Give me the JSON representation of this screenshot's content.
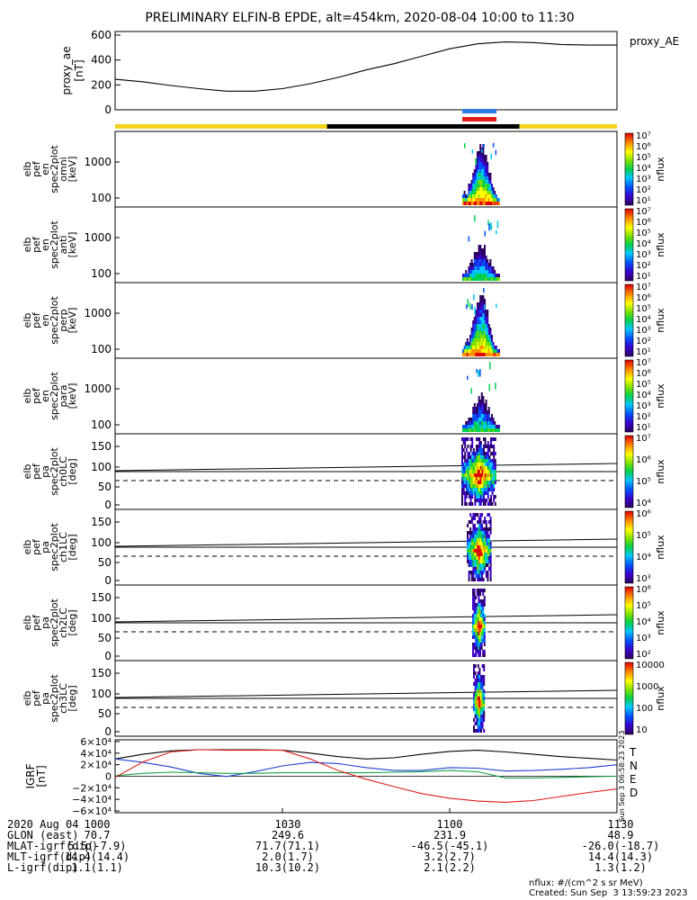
{
  "title": "PRELIMINARY ELFIN-B EPDE, alt=454km, 2020-08-04 10:00 to 11:30",
  "colors": {
    "yellow": "#f5d31b",
    "black": "#000000",
    "blue": "#2f7be6",
    "red": "#e11d1d",
    "green": "#16a34a"
  },
  "chart_data": [
    {
      "type": "line",
      "name": "proxy_ae",
      "right_label": "proxy_AE",
      "ylabel": [
        "proxy_ae",
        "[nT]"
      ],
      "ylim": [
        0,
        600
      ],
      "yticks": [
        "600",
        "400",
        "200",
        "0"
      ],
      "x_minutes": [
        0,
        5,
        10,
        15,
        20,
        25,
        30,
        35,
        40,
        45,
        50,
        55,
        60,
        65,
        70,
        75,
        80,
        85,
        90
      ],
      "values": [
        245,
        225,
        195,
        170,
        150,
        150,
        170,
        210,
        260,
        320,
        370,
        430,
        490,
        530,
        545,
        540,
        525,
        520,
        520
      ]
    },
    {
      "type": "heatmap",
      "panels": [
        {
          "ylabel": [
            "elb",
            "pef",
            "en",
            "spec2plot",
            "omni",
            "[keV]"
          ],
          "yticks": [
            "1000",
            "100"
          ],
          "zticks": [
            "10⁷",
            "10⁶",
            "10⁵",
            "10⁴",
            "10³",
            "10²",
            "10¹"
          ],
          "zlabel": "nflux"
        },
        {
          "ylabel": [
            "elb",
            "pef",
            "en",
            "spec2plot",
            "anti",
            "[keV]"
          ],
          "yticks": [
            "1000",
            "100"
          ],
          "zticks": [
            "10⁷",
            "10⁶",
            "10⁵",
            "10⁴",
            "10³",
            "10²",
            "10¹"
          ],
          "zlabel": "nflux"
        },
        {
          "ylabel": [
            "elb",
            "pef",
            "en",
            "spec2plot",
            "perp",
            "[keV]"
          ],
          "yticks": [
            "1000",
            "100"
          ],
          "zticks": [
            "10⁷",
            "10⁶",
            "10⁵",
            "10⁴",
            "10³",
            "10²",
            "10¹"
          ],
          "zlabel": "nflux"
        },
        {
          "ylabel": [
            "elb",
            "pef",
            "en",
            "spec2plot",
            "para",
            "[keV]"
          ],
          "yticks": [
            "1000",
            "100"
          ],
          "zticks": [
            "10⁷",
            "10⁶",
            "10⁵",
            "10⁴",
            "10³",
            "10²",
            "10¹"
          ],
          "zlabel": "nflux"
        },
        {
          "ylabel": [
            "elb",
            "pef",
            "pa",
            "spec2plot",
            "ch0LC",
            "[deg]"
          ],
          "yticks": [
            "150",
            "100",
            "50",
            "0"
          ],
          "zticks": [
            "10⁷",
            "10⁶",
            "10⁵",
            "10⁴"
          ],
          "zlabel": "nflux"
        },
        {
          "ylabel": [
            "elb",
            "pef",
            "pa",
            "spec2plot",
            "ch1LC",
            "[deg]"
          ],
          "yticks": [
            "150",
            "100",
            "50",
            "0"
          ],
          "zticks": [
            "10⁶",
            "10⁵",
            "10⁴",
            "10³"
          ],
          "zlabel": "nflux"
        },
        {
          "ylabel": [
            "elb",
            "pef",
            "pa",
            "spec2plot",
            "ch2LC",
            "[deg]"
          ],
          "yticks": [
            "150",
            "100",
            "50",
            "0"
          ],
          "zticks": [
            "10⁶",
            "10⁵",
            "10⁴",
            "10³",
            "10²"
          ],
          "zlabel": "nflux"
        },
        {
          "ylabel": [
            "elb",
            "pef",
            "pa",
            "spec2plot",
            "ch3LC",
            "[deg]"
          ],
          "yticks": [
            "150",
            "100",
            "50",
            "0"
          ],
          "zticks": [
            "10000",
            "1000",
            "100",
            "10"
          ],
          "zlabel": "nflux"
        }
      ]
    },
    {
      "type": "line",
      "name": "IGRF",
      "ylabel": [
        "IGRF",
        "[nT]"
      ],
      "ylim": [
        -60000,
        60000
      ],
      "yticks": [
        "6×10⁴",
        "4×10⁴",
        "2×10⁴",
        "0",
        "−2×10⁴",
        "−4×10⁴",
        "−6×10⁴"
      ],
      "x_minutes": [
        0,
        5,
        10,
        15,
        20,
        25,
        30,
        35,
        40,
        45,
        50,
        55,
        60,
        65,
        70,
        75,
        80,
        85,
        90
      ],
      "series": [
        {
          "name": "T",
          "color": "#000000",
          "values": [
            30000,
            38000,
            44000,
            46000,
            46000,
            46000,
            45000,
            40000,
            34000,
            30000,
            32000,
            38000,
            43000,
            45000,
            42000,
            38000,
            34000,
            31000,
            28000
          ]
        },
        {
          "name": "N",
          "color": "#1f3fd1",
          "values": [
            30000,
            24000,
            16000,
            5000,
            -500,
            8000,
            18000,
            24000,
            22000,
            15000,
            10000,
            10000,
            15000,
            14000,
            9000,
            10000,
            12000,
            15000,
            20000
          ]
        },
        {
          "name": "E",
          "color": "#16a34a",
          "values": [
            1000,
            5000,
            7000,
            6000,
            5000,
            5000,
            6000,
            6000,
            6000,
            6000,
            7000,
            8000,
            10000,
            8000,
            -3000,
            -3000,
            -2000,
            -1000,
            0
          ]
        },
        {
          "name": "D",
          "color": "#e11d1d",
          "values": [
            -2000,
            25000,
            42000,
            46000,
            45000,
            45000,
            45000,
            30000,
            10000,
            -5000,
            -18000,
            -30000,
            -38000,
            -43000,
            -45000,
            -42000,
            -35000,
            -28000,
            -22000
          ]
        }
      ],
      "side_text": "Sun Sep  3 06:58:23 2023"
    }
  ],
  "footer": {
    "rows": [
      {
        "label": "2020 Aug 04",
        "cols": [
          "1000",
          "1030",
          "1100",
          "1130"
        ]
      },
      {
        "label": "GLON (east)",
        "cols": [
          "70.7",
          "249.6",
          "231.9",
          "48.9"
        ]
      },
      {
        "label": "MLAT-igrf(dip)",
        "cols": [
          "5.5(-7.9)",
          "71.7(71.1)",
          "-46.5(-45.1)",
          "-26.0(-18.7)"
        ]
      },
      {
        "label": "MLT-igrf(dip)",
        "cols": [
          "14.4(14.4)",
          "2.0(1.7)",
          "3.2(2.7)",
          "14.4(14.3)"
        ]
      },
      {
        "label": "L-igrf(dip)",
        "cols": [
          "1.1(1.1)",
          "10.3(10.2)",
          "2.1(2.2)",
          "1.3(1.2)"
        ]
      }
    ],
    "units": "nflux: #/(cm^2 s sr MeV)",
    "created": "Created: Sun Sep  3 13:59:23 2023"
  }
}
